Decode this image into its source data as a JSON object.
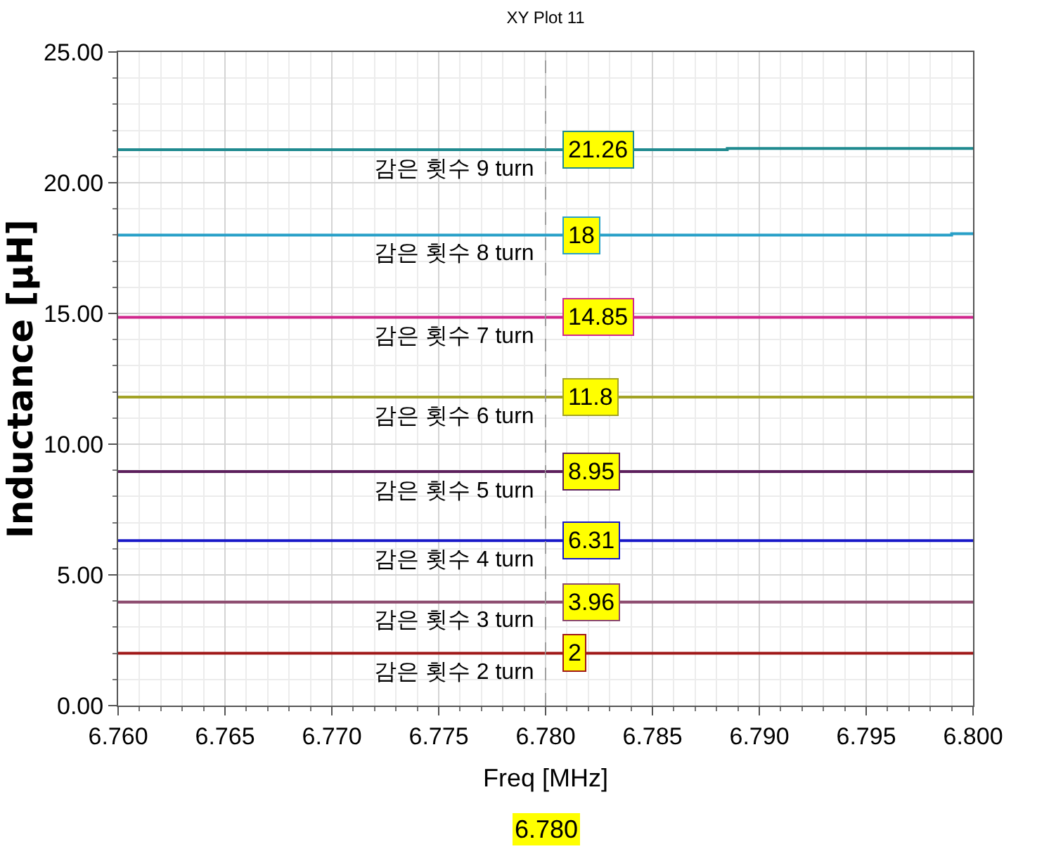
{
  "chart_data": {
    "type": "line",
    "title": "XY Plot 11",
    "xlabel": "Freq [MHz]",
    "ylabel": "Inductance [μH]",
    "xlim": [
      6.76,
      6.8
    ],
    "xticks": [
      {
        "value": 6.76,
        "label": "6.760"
      },
      6.765,
      {
        "value": 6.77,
        "label": "6.770"
      },
      6.775,
      {
        "value": 6.78,
        "label": "6.780"
      },
      6.785,
      {
        "value": 6.79,
        "label": "6.790"
      },
      6.795,
      {
        "value": 6.8,
        "label": "6.800"
      }
    ],
    "ylim": [
      0,
      25
    ],
    "yticks": [
      {
        "value": 0,
        "label": "0.00"
      },
      {
        "value": 5,
        "label": "5.00"
      },
      {
        "value": 10,
        "label": "10.00"
      },
      {
        "value": 15,
        "label": "15.00"
      },
      {
        "value": 20,
        "label": "20.00"
      },
      {
        "value": 25,
        "label": "25.00"
      }
    ],
    "grid": true,
    "legend": false,
    "ref_lines": [
      {
        "axis": "x",
        "value": 6.78,
        "color": "#a0a0a0",
        "line_style": "dashed"
      }
    ],
    "annotations": [
      "6.780"
    ],
    "series": [
      {
        "name": "감은 횟수 9 turn",
        "color": "#1f8a8f",
        "x": [
          6.76,
          6.78,
          6.7885,
          6.7885,
          6.8
        ],
        "values": [
          21.26,
          21.26,
          21.26,
          21.31,
          21.31
        ],
        "value_labels": [
          null,
          "21.26",
          null,
          null,
          null
        ]
      },
      {
        "name": "감은 횟수 8 turn",
        "color": "#28a0c8",
        "x": [
          6.76,
          6.78,
          6.799,
          6.799,
          6.8
        ],
        "values": [
          18,
          18,
          18,
          18.05,
          18.05
        ],
        "value_labels": [
          null,
          "18",
          null,
          null,
          null
        ]
      },
      {
        "name": "감은 횟수 7 turn",
        "color": "#d0268c",
        "x": [
          6.76,
          6.78,
          6.8
        ],
        "values": [
          14.85,
          14.85,
          14.85
        ],
        "value_labels": [
          null,
          "14.85",
          null
        ]
      },
      {
        "name": "감은 횟수 6 turn",
        "color": "#a3a326",
        "x": [
          6.76,
          6.78,
          6.8
        ],
        "values": [
          11.8,
          11.8,
          11.8
        ],
        "value_labels": [
          null,
          "11.8",
          null
        ]
      },
      {
        "name": "감은 횟수 5 turn",
        "color": "#5c1f5c",
        "x": [
          6.76,
          6.78,
          6.8
        ],
        "values": [
          8.95,
          8.95,
          8.95
        ],
        "value_labels": [
          null,
          "8.95",
          null
        ]
      },
      {
        "name": "감은 횟수 4 turn",
        "color": "#1818c8",
        "x": [
          6.76,
          6.78,
          6.8
        ],
        "values": [
          6.31,
          6.31,
          6.31
        ],
        "value_labels": [
          null,
          "6.31",
          null
        ]
      },
      {
        "name": "감은 횟수 3 turn",
        "color": "#8c4a6e",
        "x": [
          6.76,
          6.78,
          6.8
        ],
        "values": [
          3.96,
          3.96,
          3.96
        ],
        "value_labels": [
          null,
          "3.96",
          null
        ]
      },
      {
        "name": "감은 횟수 2 turn",
        "color": "#a01818",
        "x": [
          6.76,
          6.78,
          6.8
        ],
        "values": [
          2,
          2,
          2
        ],
        "value_labels": [
          null,
          "2",
          null
        ]
      }
    ]
  }
}
